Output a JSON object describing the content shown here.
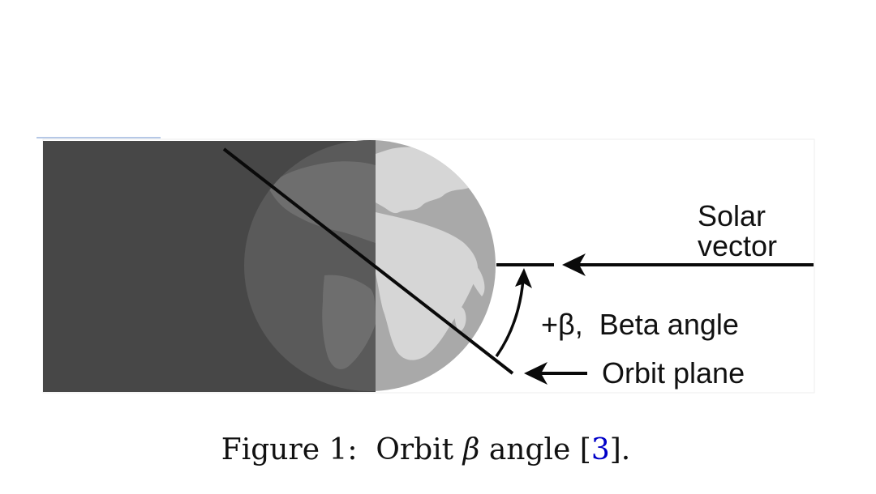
{
  "diagram": {
    "labels": {
      "solar_vector_line1": "Solar",
      "solar_vector_line2": "vector",
      "beta_angle": "+β,  Beta angle",
      "orbit_plane": "Orbit plane"
    },
    "colors": {
      "shadow": "#474747",
      "earth_lit": "#a9a9a9",
      "earth_dark": "#5a5a5a",
      "land_lit": "#d6d6d6",
      "land_dark": "#6e6e6e",
      "stroke": "#0a0a0a",
      "top_link_line": "#8aa6d8"
    }
  },
  "caption": {
    "prefix": "Figure 1:  Orbit ",
    "symbol": "β",
    "middle": " angle [",
    "ref": "3",
    "suffix": "]."
  }
}
